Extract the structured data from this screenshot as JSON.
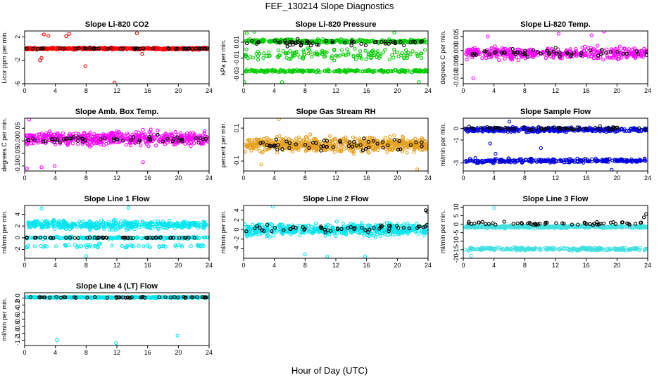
{
  "page_title": "FEF_130214  Slope Diagnostics",
  "x_axis_title": "Hour of Day (UTC)",
  "chart_data": [
    {
      "type": "scatter",
      "title": "Slope Li-820 CO2",
      "ylabel": "Licor ppm per min.",
      "xlim": [
        0,
        24
      ],
      "xticks": [
        0,
        4,
        8,
        12,
        16,
        20,
        24
      ],
      "ylim": [
        -6,
        3
      ],
      "yticks": [
        {
          "v": 2,
          "t": "2"
        },
        {
          "v": -2,
          "t": "-2"
        },
        {
          "v": -6,
          "t": "-6"
        }
      ],
      "color": "#ff0000",
      "series": [
        {
          "name": "all slopes",
          "color": "#ff0000",
          "bands": [
            {
              "center": 0,
              "spread": 0.3,
              "n": 420
            }
          ],
          "outliers": [
            [
              2.5,
              2.4
            ],
            [
              3.1,
              2.2
            ],
            [
              5.4,
              2.1
            ],
            [
              5.8,
              2.5
            ],
            [
              14.6,
              2.6
            ],
            [
              2.2,
              -1.6
            ],
            [
              2.0,
              -2.0
            ],
            [
              7.9,
              -3.0
            ],
            [
              11.7,
              -5.8
            ],
            [
              15.3,
              -0.9
            ]
          ]
        },
        {
          "name": "mean",
          "color": "#000000",
          "bands": [
            {
              "center": 0,
              "spread": 0.18,
              "n": 48
            }
          ],
          "outliers": []
        }
      ]
    },
    {
      "type": "scatter",
      "title": "Slope Li-820 Pressure",
      "ylabel": "kPa per min.",
      "xlim": [
        0,
        24
      ],
      "xticks": [
        0,
        4,
        8,
        12,
        16,
        20,
        24
      ],
      "ylim": [
        -0.042,
        0.024
      ],
      "yticks": [
        {
          "v": 0.01,
          "t": "0.01"
        },
        {
          "v": -0.01,
          "t": "-0.01"
        },
        {
          "v": -0.03,
          "t": "-0.03"
        }
      ],
      "color": "#00cc00",
      "series": [
        {
          "name": "all slopes",
          "color": "#00cc00",
          "bands": [
            {
              "center": 0.011,
              "spread": 0.004,
              "n": 300
            },
            {
              "center": -0.005,
              "spread": 0.012,
              "n": 140
            },
            {
              "center": -0.026,
              "spread": 0.003,
              "n": 220
            }
          ],
          "outliers": [
            [
              0.4,
              0.021
            ],
            [
              1.4,
              0.023
            ],
            [
              0.1,
              -0.04
            ],
            [
              5.0,
              -0.04
            ],
            [
              22.8,
              -0.04
            ],
            [
              19.6,
              0.022
            ]
          ]
        },
        {
          "name": "mean",
          "color": "#000000",
          "bands": [
            {
              "center": 0.009,
              "spread": 0.006,
              "n": 60
            }
          ],
          "outliers": []
        }
      ]
    },
    {
      "type": "scatter",
      "title": "Slope Li-820 Temp.",
      "ylabel": "degrees C per min.",
      "xlim": [
        0,
        24
      ],
      "xticks": [
        0,
        4,
        8,
        12,
        16,
        20,
        24
      ],
      "ylim": [
        -0.012,
        0.007
      ],
      "yticks": [
        {
          "v": 0.005,
          "t": "0.005"
        },
        {
          "v": 0,
          "t": "0.000"
        },
        {
          "v": -0.005,
          "t": "-0.005"
        },
        {
          "v": -0.01,
          "t": "-0.010"
        }
      ],
      "color": "#ff00ff",
      "series": [
        {
          "name": "all slopes",
          "color": "#ff00ff",
          "bands": [
            {
              "center": -0.001,
              "spread": 0.0035,
              "n": 380
            }
          ],
          "outliers": [
            [
              1.3,
              -0.01
            ],
            [
              12.4,
              0.006
            ],
            [
              16.7,
              0.0055
            ],
            [
              18.3,
              0.0068
            ],
            [
              3.2,
              0.005
            ]
          ]
        },
        {
          "name": "mean",
          "color": "#000000",
          "bands": [
            {
              "center": -0.001,
              "spread": 0.0025,
              "n": 55
            }
          ],
          "outliers": []
        }
      ]
    },
    {
      "type": "scatter",
      "title": "Slope Amb. Box Temp.",
      "ylabel": "degrees C per min.",
      "xlim": [
        0,
        24
      ],
      "xticks": [
        0,
        4,
        8,
        12,
        16,
        20,
        24
      ],
      "ylim": [
        -0.12,
        0.09
      ],
      "yticks": [
        {
          "v": 0.05,
          "t": "0.05"
        },
        {
          "v": 0,
          "t": "0.00"
        },
        {
          "v": -0.05,
          "t": "-0.05"
        },
        {
          "v": -0.1,
          "t": "-0.10"
        }
      ],
      "color": "#ff00ff",
      "series": [
        {
          "name": "all slopes",
          "color": "#ff00ff",
          "bands": [
            {
              "center": 0.01,
              "spread": 0.045,
              "n": 520
            }
          ],
          "outliers": [
            [
              0.6,
              0.085
            ],
            [
              0.3,
              -0.11
            ],
            [
              2.2,
              -0.105
            ],
            [
              3.9,
              -0.1
            ],
            [
              15.4,
              -0.085
            ]
          ]
        },
        {
          "name": "mean",
          "color": "#000000",
          "bands": [
            {
              "center": 0.005,
              "spread": 0.025,
              "n": 55
            }
          ],
          "outliers": []
        }
      ]
    },
    {
      "type": "scatter",
      "title": "Slope Gas Stream RH",
      "ylabel": "percent per min.",
      "xlim": [
        0,
        24
      ],
      "xticks": [
        0,
        4,
        8,
        12,
        16,
        20,
        24
      ],
      "ylim": [
        -0.16,
        0.16
      ],
      "yticks": [
        {
          "v": 0.1,
          "t": "0.1"
        },
        {
          "v": -0.1,
          "t": "-0.1"
        }
      ],
      "color": "#e6a020",
      "series": [
        {
          "name": "all slopes",
          "color": "#e6a020",
          "bands": [
            {
              "center": 0,
              "spread": 0.075,
              "n": 650
            }
          ],
          "outliers": [
            [
              4.6,
              0.155
            ],
            [
              22.6,
              -0.15
            ],
            [
              2.3,
              -0.12
            ]
          ]
        },
        {
          "name": "mean",
          "color": "#000000",
          "bands": [
            {
              "center": 0,
              "spread": 0.06,
              "n": 55
            }
          ],
          "outliers": []
        }
      ]
    },
    {
      "type": "scatter",
      "title": "Slope Sample Flow",
      "ylabel": "ml/min per min.",
      "xlim": [
        0,
        24
      ],
      "xticks": [
        0,
        4,
        8,
        12,
        16,
        20,
        24
      ],
      "ylim": [
        -3.7,
        0.9
      ],
      "yticks": [
        {
          "v": 0,
          "t": "0"
        },
        {
          "v": -1,
          "t": "-1"
        },
        {
          "v": -3,
          "t": "-3"
        }
      ],
      "color": "#0000dd",
      "series": [
        {
          "name": "all slopes",
          "color": "#0000dd",
          "bands": [
            {
              "center": -0.1,
              "spread": 0.35,
              "n": 380
            },
            {
              "center": -2.8,
              "spread": 0.3,
              "n": 280
            }
          ],
          "outliers": [
            [
              6.0,
              0.6
            ],
            [
              19.3,
              -3.6
            ],
            [
              3.5,
              -1.3
            ],
            [
              10.1,
              -1.7
            ],
            [
              4.2,
              -2.2
            ]
          ]
        },
        {
          "name": "mean",
          "color": "#000000",
          "bands": [
            {
              "center": 0,
              "spread": 0.25,
              "n": 55
            }
          ],
          "outliers": []
        }
      ]
    },
    {
      "type": "scatter",
      "title": "Slope Line 1 Flow",
      "ylabel": "ml/min per min.",
      "xlim": [
        0,
        24
      ],
      "xticks": [
        0,
        4,
        8,
        12,
        16,
        20,
        24
      ],
      "ylim": [
        -3.5,
        5.5
      ],
      "yticks": [
        {
          "v": 4,
          "t": "4"
        },
        {
          "v": 2,
          "t": "2"
        },
        {
          "v": 0,
          "t": "0"
        },
        {
          "v": -2,
          "t": "-2"
        }
      ],
      "color": "#00e5ee",
      "series": [
        {
          "name": "all slopes",
          "color": "#00e5ee",
          "bands": [
            {
              "center": 2.2,
              "spread": 1.3,
              "n": 400
            },
            {
              "center": 0,
              "spread": 0.3,
              "n": 200
            },
            {
              "center": -1.4,
              "spread": 0.5,
              "n": 60
            }
          ],
          "outliers": [
            [
              8.0,
              -3.1
            ],
            [
              2.2,
              5.0
            ],
            [
              13.5,
              5.1
            ]
          ]
        },
        {
          "name": "mean",
          "color": "#000000",
          "bands": [
            {
              "center": 0,
              "spread": 0.12,
              "n": 55
            }
          ],
          "outliers": []
        }
      ]
    },
    {
      "type": "scatter",
      "title": "Slope Line 2 Flow",
      "ylabel": "ml/min per min.",
      "xlim": [
        0,
        24
      ],
      "xticks": [
        0,
        4,
        8,
        12,
        16,
        20,
        24
      ],
      "ylim": [
        -6,
        5
      ],
      "yticks": [
        {
          "v": 4,
          "t": "4"
        },
        {
          "v": 2,
          "t": "2"
        },
        {
          "v": 0,
          "t": "0"
        },
        {
          "v": -2,
          "t": "-2"
        },
        {
          "v": -4,
          "t": "-4"
        }
      ],
      "color": "#00e5ee",
      "series": [
        {
          "name": "all slopes",
          "color": "#00e5ee",
          "bands": [
            {
              "center": 0,
              "spread": 2.2,
              "n": 520
            }
          ],
          "outliers": [
            [
              3.8,
              4.8
            ],
            [
              10.9,
              -5.6
            ],
            [
              15.8,
              -5.6
            ],
            [
              8.0,
              -5.2
            ]
          ]
        },
        {
          "name": "mean",
          "color": "#000000",
          "bands": [
            {
              "center": 0.2,
              "spread": 1.3,
              "n": 55
            }
          ],
          "outliers": [
            [
              23.7,
              4.0
            ],
            [
              23.9,
              3.7
            ]
          ]
        }
      ]
    },
    {
      "type": "scatter",
      "title": "Slope Line 3 Flow",
      "ylabel": "ml/min per min.",
      "xlim": [
        0,
        24
      ],
      "xticks": [
        0,
        4,
        8,
        12,
        16,
        20,
        24
      ],
      "ylim": [
        -20,
        11
      ],
      "yticks": [
        {
          "v": 10,
          "t": "10"
        },
        {
          "v": 5,
          "t": "5"
        },
        {
          "v": 0,
          "t": "0"
        },
        {
          "v": -5,
          "t": "-5"
        },
        {
          "v": -10,
          "t": "-10"
        },
        {
          "v": -15,
          "t": "-15"
        },
        {
          "v": -20,
          "t": "-20"
        }
      ],
      "color": "#40e0e0",
      "series": [
        {
          "name": "all slopes",
          "color": "#40e0e0",
          "bands": [
            {
              "center": -1.5,
              "spread": 1.5,
              "n": 380
            },
            {
              "center": -14.5,
              "spread": 1.5,
              "n": 260
            }
          ],
          "outliers": [
            [
              4.0,
              9.5
            ],
            [
              1.0,
              -18.5
            ]
          ]
        },
        {
          "name": "mean",
          "color": "#000000",
          "bands": [
            {
              "center": 0.5,
              "spread": 1.8,
              "n": 55
            }
          ],
          "outliers": [
            [
              23.8,
              6.0
            ],
            [
              23.5,
              4.0
            ]
          ]
        }
      ]
    },
    {
      "type": "scatter",
      "title": "Slope Line 4 (LT) Flow",
      "ylabel": "ml/min per min.",
      "xlim": [
        0,
        24
      ],
      "xticks": [
        0,
        4,
        8,
        12,
        16,
        20,
        24
      ],
      "ylim": [
        -1.35,
        0.15
      ],
      "yticks": [
        {
          "v": 0,
          "t": "0.0"
        },
        {
          "v": -0.2,
          "t": "-0.2"
        },
        {
          "v": -0.4,
          "t": "-0.4"
        },
        {
          "v": -0.6,
          "t": "-0.6"
        },
        {
          "v": -0.8,
          "t": "-0.8"
        },
        {
          "v": -1.0,
          "t": "-1.0"
        },
        {
          "v": -1.2,
          "t": "-1.2"
        }
      ],
      "color": "#00e5ee",
      "series": [
        {
          "name": "all slopes",
          "color": "#00e5ee",
          "bands": [
            {
              "center": 0.02,
              "spread": 0.03,
              "n": 420
            }
          ],
          "outliers": [
            [
              4.2,
              -1.2
            ],
            [
              11.9,
              -1.28
            ],
            [
              19.9,
              -1.07
            ]
          ]
        },
        {
          "name": "mean",
          "color": "#000000",
          "bands": [
            {
              "center": 0.02,
              "spread": 0.03,
              "n": 50
            }
          ],
          "outliers": []
        }
      ]
    }
  ]
}
